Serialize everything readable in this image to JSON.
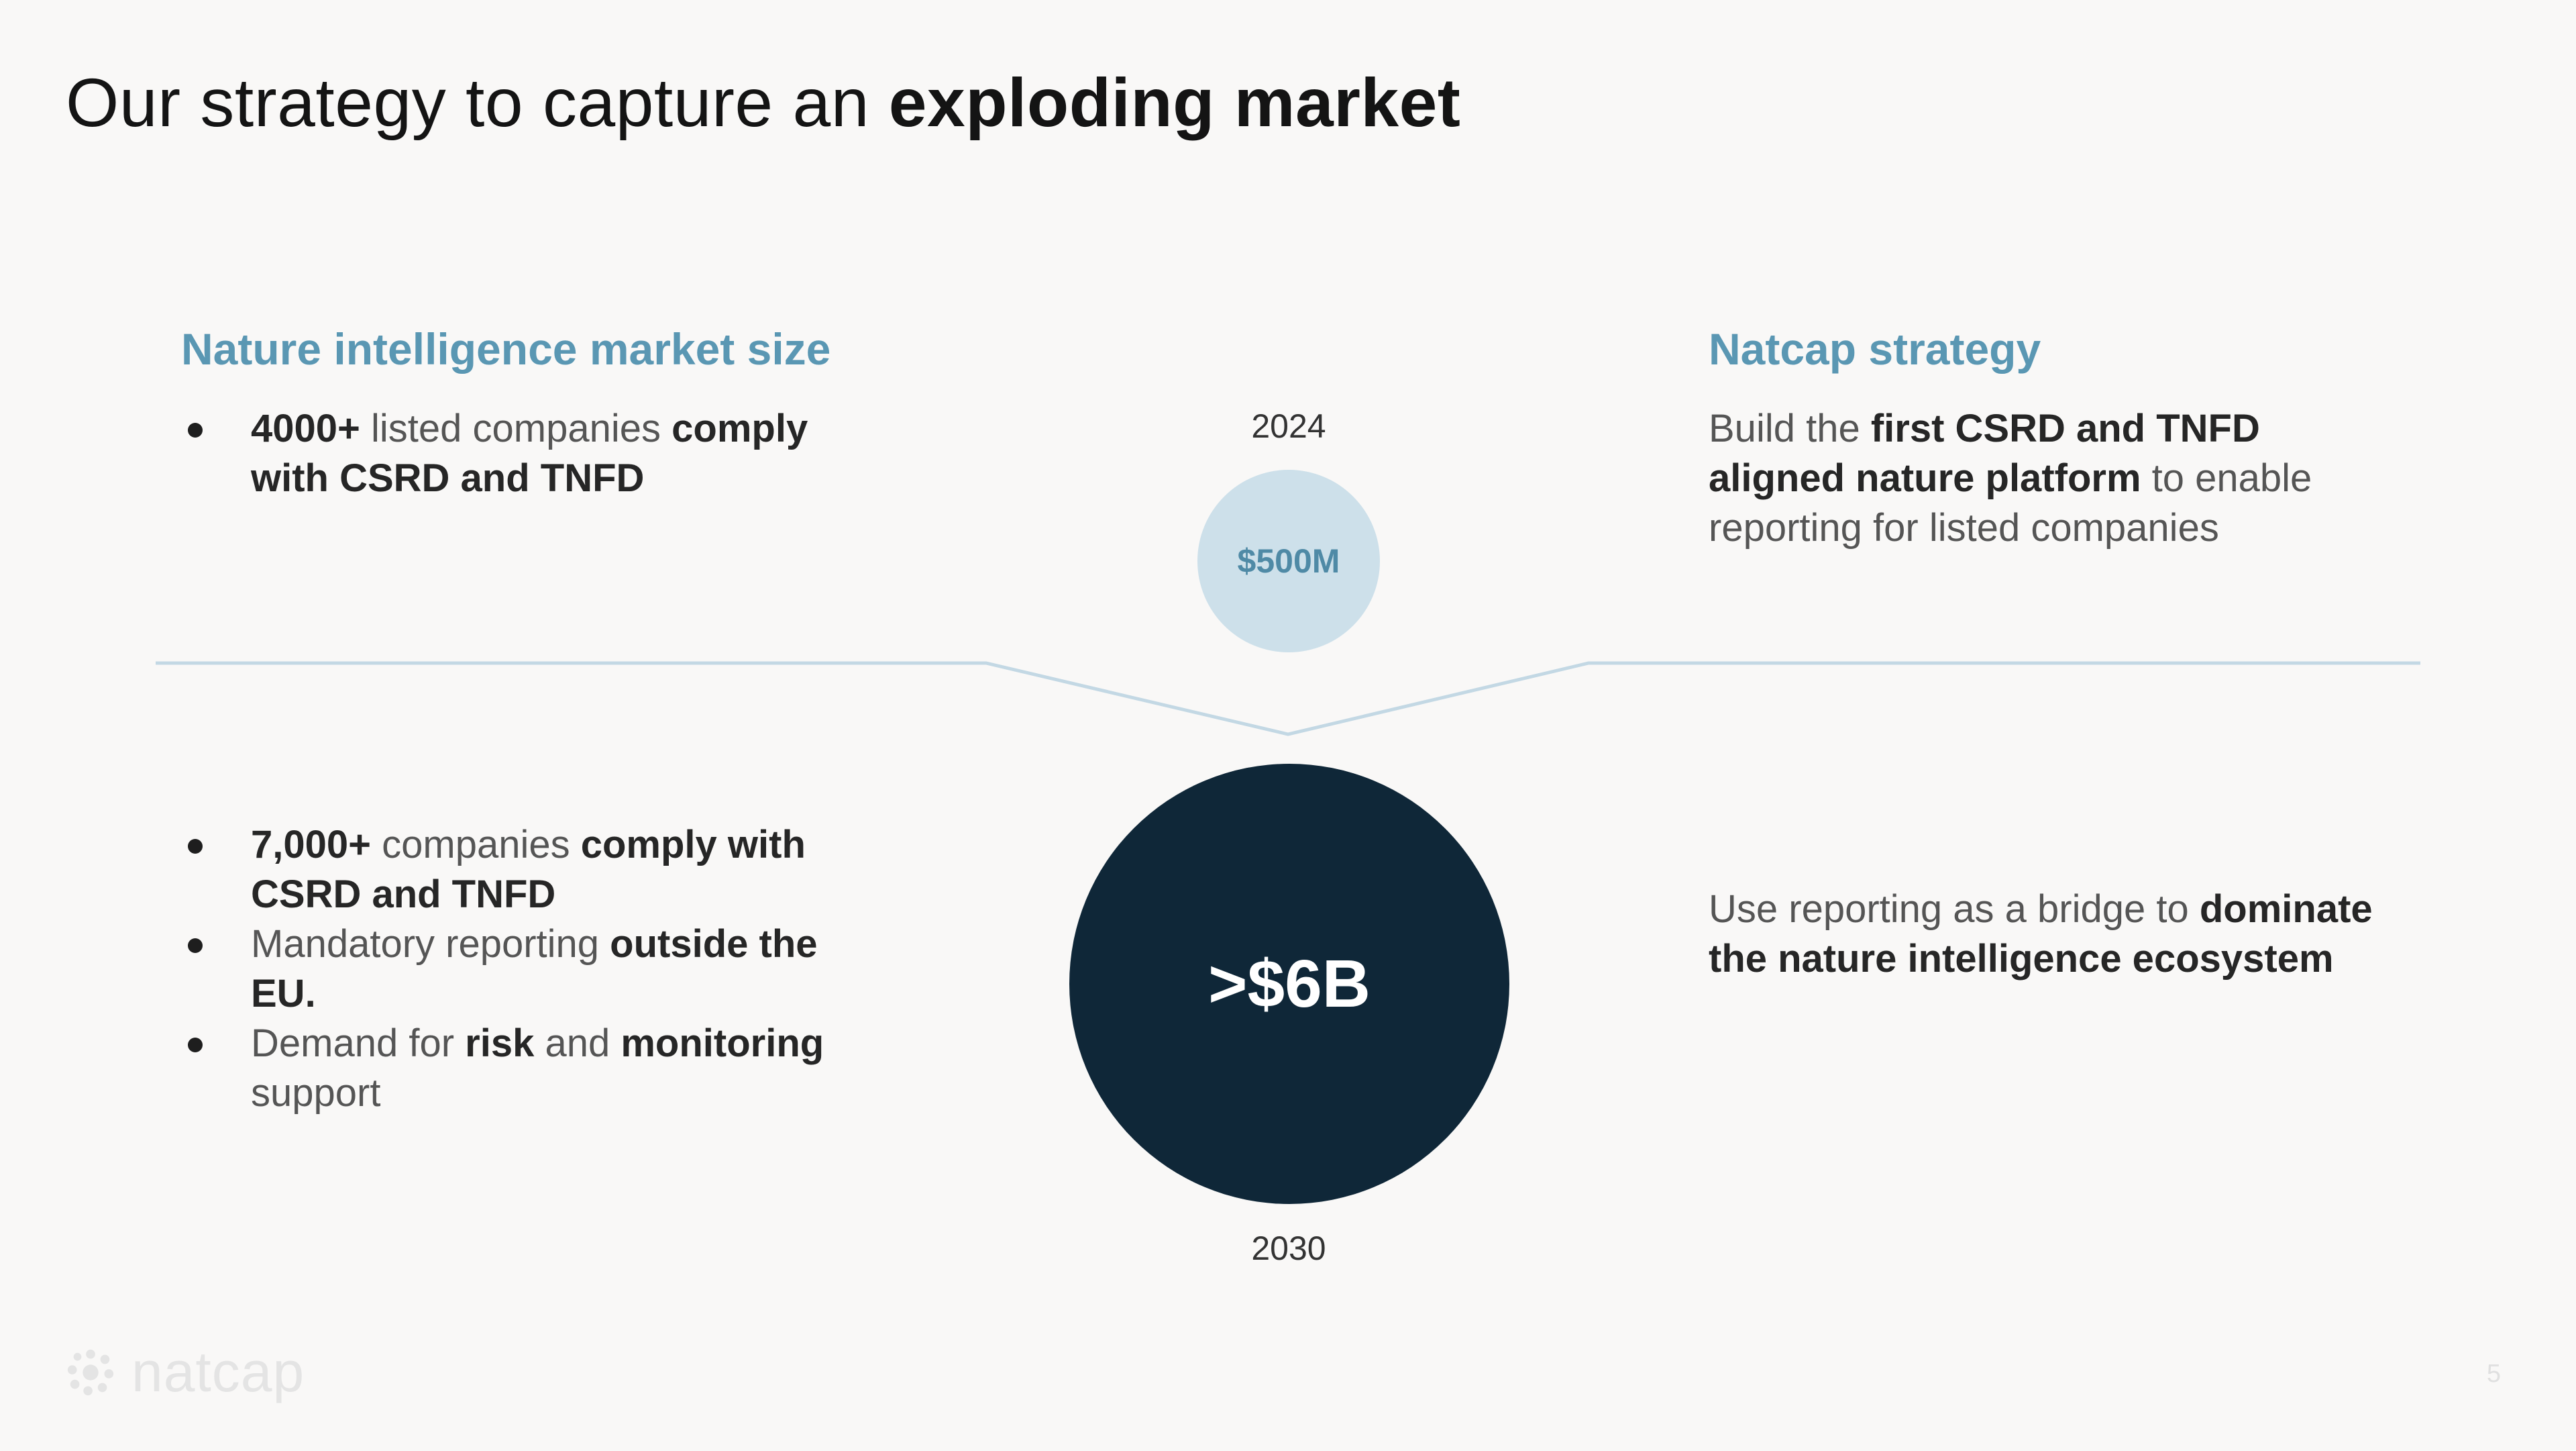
{
  "title": {
    "prefix": "Our strategy to capture an ",
    "emphasis": "exploding market"
  },
  "left": {
    "heading": "Nature intelligence market size",
    "top_bullets": [
      [
        {
          "t": "4000+",
          "b": true
        },
        {
          "t": " listed companies ",
          "b": false
        },
        {
          "t": "comply with CSRD and TNFD",
          "b": true
        }
      ]
    ],
    "bottom_bullets": [
      [
        {
          "t": "7,000+",
          "b": true
        },
        {
          "t": " companies ",
          "b": false
        },
        {
          "t": "comply with CSRD and TNFD",
          "b": true
        }
      ],
      [
        {
          "t": "Mandatory reporting ",
          "b": false
        },
        {
          "t": "outside the EU.",
          "b": true
        }
      ],
      [
        {
          "t": "Demand for ",
          "b": false
        },
        {
          "t": "risk",
          "b": true
        },
        {
          "t": " and ",
          "b": false
        },
        {
          "t": "monitoring",
          "b": true
        },
        {
          "t": " support",
          "b": false
        }
      ]
    ]
  },
  "center": {
    "year_top": "2024",
    "small_value": "$500M",
    "big_value": ">$6B",
    "year_bottom": "2030"
  },
  "right": {
    "heading": "Natcap strategy",
    "top_para": [
      {
        "t": "Build the ",
        "b": false
      },
      {
        "t": "first CSRD and TNFD aligned nature platform",
        "b": true
      },
      {
        "t": " to enable reporting for listed companies",
        "b": false
      }
    ],
    "bottom_para": [
      {
        "t": "Use reporting as a bridge to ",
        "b": false
      },
      {
        "t": "dominate the nature intelligence ecosystem",
        "b": true
      }
    ]
  },
  "footer": {
    "logo_text": "natcap",
    "page_number": "5"
  },
  "colors": {
    "accent": "#5a97b3",
    "small_circle": "#cde0ea",
    "big_circle": "#0f2738",
    "funnel_line": "#c3d8e4",
    "background": "#f9f8f7"
  }
}
